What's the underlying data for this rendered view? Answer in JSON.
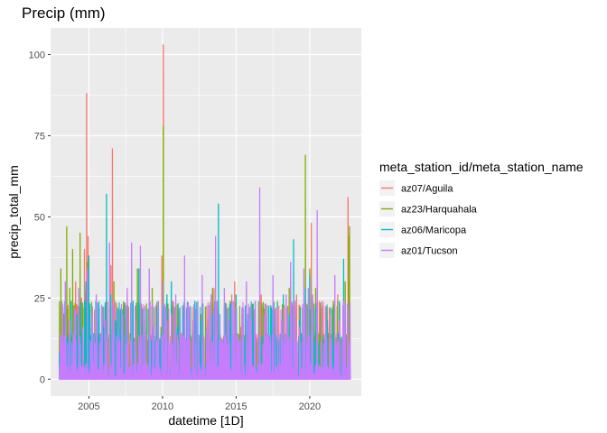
{
  "chart_data": {
    "type": "line",
    "title": "Precip (mm)",
    "xlabel": "datetime [1D]",
    "ylabel": "precip_total_mm",
    "xlim": [
      2002.4,
      2023.5
    ],
    "ylim": [
      -5.2,
      108.2
    ],
    "xticks": [
      2005,
      2010,
      2015,
      2020
    ],
    "xtick_labels": [
      "2005",
      "2010",
      "2015",
      "2020"
    ],
    "yticks": [
      0,
      25,
      50,
      75,
      100
    ],
    "ytick_labels": [
      "0",
      "25",
      "50",
      "75",
      "100"
    ],
    "grid": true,
    "background": "#EBEBEB",
    "legend": {
      "title": "meta_station_id/meta_station_name",
      "position": "right"
    },
    "series": [
      {
        "name": "az07/Aguila",
        "color": "#F8766D",
        "x": [
          2003.05,
          2003.2,
          2003.6,
          2003.9,
          2004.1,
          2004.5,
          2004.7,
          2004.78,
          2004.85,
          2004.95,
          2005.05,
          2005.2,
          2005.6,
          2005.9,
          2006.2,
          2006.5,
          2006.6,
          2006.9,
          2007.3,
          2007.6,
          2007.9,
          2008.2,
          2008.6,
          2008.9,
          2009.2,
          2009.6,
          2009.95,
          2010.05,
          2010.1,
          2010.3,
          2010.7,
          2011.1,
          2011.7,
          2012.1,
          2012.7,
          2013.1,
          2013.5,
          2013.7,
          2014.2,
          2014.7,
          2014.9,
          2015.3,
          2015.7,
          2016.2,
          2016.7,
          2017.1,
          2017.7,
          2018.1,
          2018.7,
          2019.1,
          2019.5,
          2019.9,
          2020.1,
          2020.5,
          2020.8,
          2021.1,
          2021.6,
          2021.9,
          2022.2,
          2022.55,
          2022.6
        ],
        "y": [
          12,
          6,
          18,
          10,
          30,
          25,
          40,
          27,
          88,
          44,
          22,
          12,
          8,
          15,
          10,
          35,
          71,
          12,
          20,
          10,
          14,
          18,
          22,
          15,
          8,
          20,
          38,
          103,
          12,
          22,
          24,
          14,
          20,
          16,
          14,
          18,
          28,
          24,
          12,
          26,
          30,
          16,
          28,
          18,
          26,
          12,
          22,
          14,
          30,
          26,
          16,
          22,
          48,
          34,
          14,
          12,
          18,
          26,
          12,
          18,
          56
        ]
      },
      {
        "name": "az23/Harquahala",
        "color": "#7CAE00",
        "x": [
          2003.1,
          2003.3,
          2003.5,
          2003.7,
          2003.9,
          2004.2,
          2004.4,
          2004.6,
          2004.9,
          2005.2,
          2005.5,
          2005.8,
          2006.1,
          2006.4,
          2006.7,
          2007.0,
          2007.3,
          2007.6,
          2008.0,
          2008.3,
          2008.6,
          2009.0,
          2009.3,
          2009.6,
          2009.9,
          2010.05,
          2010.3,
          2010.6,
          2011.0,
          2011.4,
          2011.8,
          2012.2,
          2012.6,
          2013.0,
          2013.4,
          2013.8,
          2014.2,
          2014.6,
          2015.0,
          2015.4,
          2015.8,
          2016.2,
          2016.6,
          2017.0,
          2017.4,
          2017.8,
          2018.2,
          2018.6,
          2019.0,
          2019.5,
          2019.7,
          2020.0,
          2020.4,
          2020.8,
          2021.2,
          2021.6,
          2022.0,
          2022.4,
          2022.65,
          2022.7
        ],
        "y": [
          34,
          20,
          47,
          28,
          40,
          18,
          45,
          22,
          36,
          18,
          26,
          14,
          12,
          22,
          30,
          10,
          20,
          26,
          18,
          34,
          16,
          12,
          28,
          20,
          16,
          78,
          24,
          18,
          16,
          22,
          12,
          18,
          20,
          16,
          28,
          22,
          14,
          24,
          12,
          20,
          18,
          16,
          22,
          12,
          18,
          24,
          14,
          28,
          12,
          22,
          69,
          34,
          28,
          12,
          16,
          24,
          18,
          30,
          44,
          47
        ]
      },
      {
        "name": "az06/Maricopa",
        "color": "#00BFC4",
        "x": [
          2003.0,
          2003.2,
          2003.5,
          2003.8,
          2004.2,
          2004.5,
          2004.8,
          2005.0,
          2005.3,
          2005.7,
          2006.0,
          2006.2,
          2006.5,
          2006.8,
          2007.2,
          2007.6,
          2008.0,
          2008.4,
          2008.8,
          2009.2,
          2009.6,
          2010.0,
          2010.3,
          2010.6,
          2011.0,
          2011.4,
          2011.8,
          2012.2,
          2012.6,
          2013.0,
          2013.4,
          2013.8,
          2014.2,
          2014.6,
          2015.0,
          2015.4,
          2015.8,
          2016.2,
          2016.6,
          2017.0,
          2017.4,
          2017.8,
          2018.2,
          2018.6,
          2018.9,
          2019.3,
          2019.7,
          2020.0,
          2020.4,
          2020.8,
          2021.2,
          2021.6,
          2022.0,
          2022.3,
          2022.6
        ],
        "y": [
          8,
          18,
          12,
          24,
          20,
          14,
          30,
          38,
          14,
          22,
          16,
          57,
          26,
          18,
          22,
          14,
          24,
          34,
          18,
          12,
          22,
          16,
          26,
          30,
          16,
          22,
          12,
          24,
          18,
          14,
          20,
          54,
          22,
          16,
          26,
          12,
          20,
          18,
          24,
          14,
          22,
          12,
          26,
          20,
          43,
          18,
          28,
          32,
          22,
          14,
          18,
          12,
          24,
          37,
          20
        ]
      },
      {
        "name": "az01/Tucson",
        "color": "#C77CFF",
        "x": [
          2003.1,
          2003.4,
          2003.7,
          2004.0,
          2004.3,
          2004.6,
          2004.9,
          2005.2,
          2005.5,
          2005.8,
          2006.1,
          2006.4,
          2006.7,
          2007.0,
          2007.3,
          2007.6,
          2007.9,
          2008.2,
          2008.5,
          2008.8,
          2009.1,
          2009.4,
          2009.7,
          2010.0,
          2010.3,
          2010.6,
          2010.9,
          2011.2,
          2011.5,
          2011.8,
          2012.1,
          2012.4,
          2012.7,
          2013.0,
          2013.3,
          2013.6,
          2013.9,
          2014.2,
          2014.5,
          2014.8,
          2015.1,
          2015.4,
          2015.7,
          2016.0,
          2016.3,
          2016.6,
          2016.9,
          2017.2,
          2017.5,
          2017.8,
          2018.1,
          2018.4,
          2018.7,
          2019.0,
          2019.3,
          2019.6,
          2019.9,
          2020.2,
          2020.5,
          2020.8,
          2021.1,
          2021.4,
          2021.7,
          2022.0,
          2022.3,
          2022.6
        ],
        "y": [
          14,
          30,
          18,
          22,
          28,
          16,
          34,
          20,
          26,
          12,
          18,
          42,
          24,
          14,
          20,
          28,
          42,
          18,
          41,
          22,
          34,
          16,
          24,
          30,
          18,
          20,
          26,
          14,
          38,
          22,
          18,
          24,
          32,
          16,
          26,
          44,
          20,
          28,
          18,
          24,
          14,
          22,
          30,
          18,
          24,
          59,
          20,
          14,
          32,
          22,
          18,
          26,
          36,
          24,
          16,
          34,
          28,
          26,
          52,
          24,
          16,
          20,
          32,
          18,
          24,
          22
        ]
      }
    ]
  }
}
